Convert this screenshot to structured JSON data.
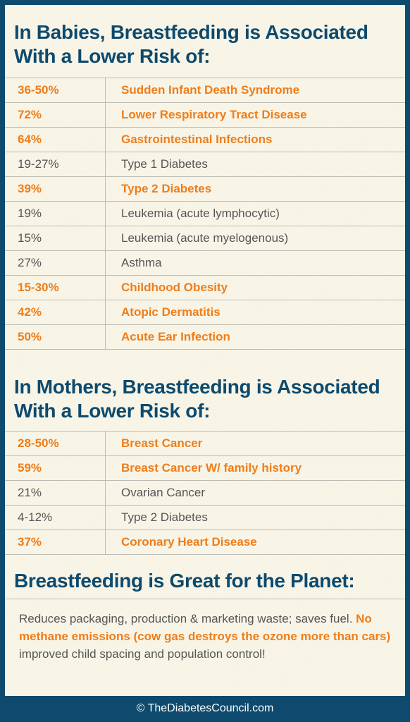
{
  "babies": {
    "heading_line1": "In Babies, Breastfeeding is Associated",
    "heading_line2": "With a Lower Risk of:",
    "rows": [
      {
        "pct": "36-50%",
        "condition": "Sudden Infant Death Syndrome",
        "highlight": true
      },
      {
        "pct": "72%",
        "condition": "Lower Respiratory Tract Disease",
        "highlight": true
      },
      {
        "pct": "64%",
        "condition": "Gastrointestinal Infections",
        "highlight": true
      },
      {
        "pct": "19-27%",
        "condition": "Type 1 Diabetes",
        "highlight": false
      },
      {
        "pct": "39%",
        "condition": "Type 2 Diabetes",
        "highlight": true
      },
      {
        "pct": "19%",
        "condition": "Leukemia (acute lymphocytic)",
        "highlight": false
      },
      {
        "pct": "15%",
        "condition": "Leukemia (acute myelogenous)",
        "highlight": false
      },
      {
        "pct": "27%",
        "condition": "Asthma",
        "highlight": false
      },
      {
        "pct": "15-30%",
        "condition": "Childhood Obesity",
        "highlight": true
      },
      {
        "pct": "42%",
        "condition": "Atopic Dermatitis",
        "highlight": true
      },
      {
        "pct": "50%",
        "condition": "Acute Ear Infection",
        "highlight": true
      }
    ]
  },
  "mothers": {
    "heading_line1": "In Mothers, Breastfeeding is Associated",
    "heading_line2": "With a Lower Risk of:",
    "rows": [
      {
        "pct": "28-50%",
        "condition": "Breast Cancer",
        "highlight": true
      },
      {
        "pct": "59%",
        "condition": "Breast Cancer W/ family history",
        "highlight": true
      },
      {
        "pct": "21%",
        "condition": "Ovarian Cancer",
        "highlight": false
      },
      {
        "pct": "4-12%",
        "condition": "Type 2 Diabetes",
        "highlight": false
      },
      {
        "pct": "37%",
        "condition": "Coronary Heart Disease",
        "highlight": true
      }
    ]
  },
  "planet": {
    "heading": "Breastfeeding is Great for the Planet:",
    "text_part1": "Reduces packaging, production & marketing waste; saves fuel. ",
    "text_highlight": "No methane emissions (cow gas destroys the ozone more than cars)",
    "text_part2": " improved child spacing and population control!"
  },
  "footer": {
    "copyright": "© TheDiabetesCouncil.com"
  },
  "colors": {
    "navy": "#0d4a6e",
    "orange": "#ef7d1a",
    "gray_text": "#555555",
    "background": "#f9f6e8"
  }
}
